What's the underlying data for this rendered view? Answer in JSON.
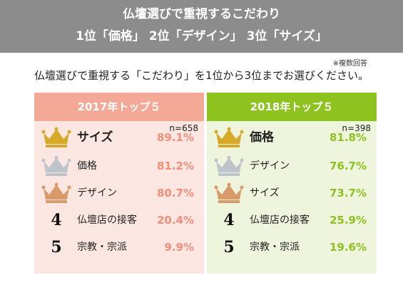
{
  "header": {
    "line1": "仏壇選びで重視するこだわり",
    "line2": "1位「価格」 2位「デザイン」 3位「サイズ」"
  },
  "note": "※複数回答",
  "question": "仏壇選びで重視する「こだわり」を1位から3位までお選びください。",
  "colors": {
    "header_bg": "#8c8c8c",
    "panel2017_head": "#f4a896",
    "panel2017_bg": "#fbe6e2",
    "panel2017_value": "#f08e78",
    "panel2018_head": "#8dc21f",
    "panel2018_bg": "#eef5dc",
    "gold": "#d6a928",
    "silver": "#bfc3cc",
    "bronze": "#d99a6a"
  },
  "panels": [
    {
      "title": "2017年トップ５",
      "n": "n=658",
      "rows": [
        {
          "rank": "1",
          "icon": "gold-crown-icon",
          "label": "サイズ",
          "value": "89.1%"
        },
        {
          "rank": "2",
          "icon": "silver-crown-icon",
          "label": "価格",
          "value": "81.2%"
        },
        {
          "rank": "3",
          "icon": "bronze-crown-icon",
          "label": "デザイン",
          "value": "80.7%"
        },
        {
          "rank": "4",
          "icon": "",
          "label": "仏壇店の接客",
          "value": "20.4%"
        },
        {
          "rank": "5",
          "icon": "",
          "label": "宗教・宗派",
          "value": "9.9%"
        }
      ]
    },
    {
      "title": "2018年トップ５",
      "n": "n=398",
      "rows": [
        {
          "rank": "1",
          "icon": "gold-crown-icon",
          "label": "価格",
          "value": "81.8%"
        },
        {
          "rank": "2",
          "icon": "silver-crown-icon",
          "label": "デザイン",
          "value": "76.7%"
        },
        {
          "rank": "3",
          "icon": "bronze-crown-icon",
          "label": "サイズ",
          "value": "73.7%"
        },
        {
          "rank": "4",
          "icon": "",
          "label": "仏壇店の接客",
          "value": "25.9%"
        },
        {
          "rank": "5",
          "icon": "",
          "label": "宗教・宗派",
          "value": "19.6%"
        }
      ]
    }
  ]
}
